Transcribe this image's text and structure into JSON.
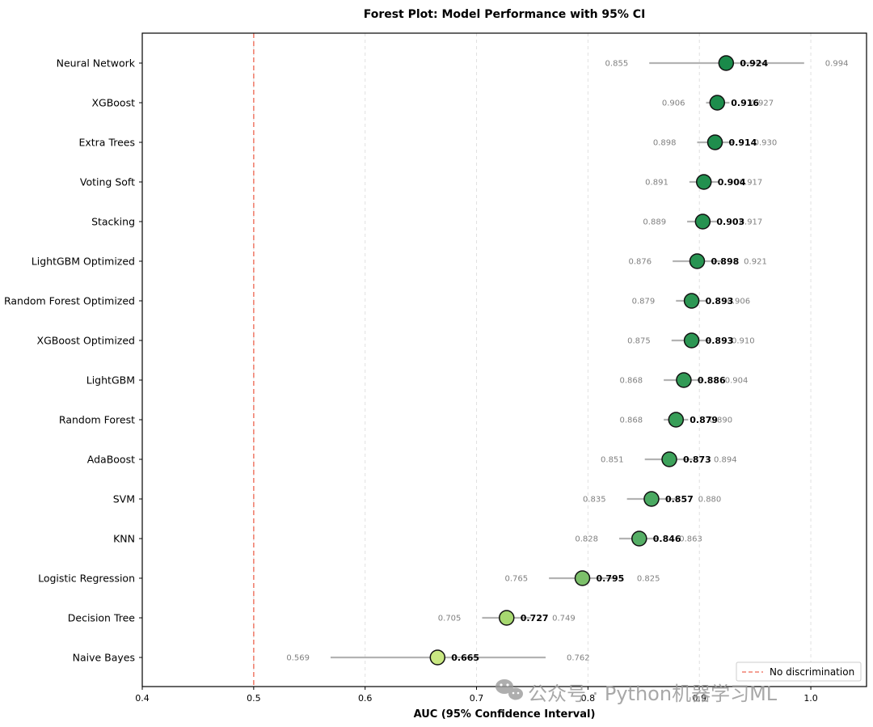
{
  "chart_data": {
    "type": "forest",
    "title": "Forest Plot: Model Performance with 95% CI",
    "xlabel": "AUC (95% Confidence Interval)",
    "ylabel": "",
    "xlim": [
      0.4,
      1.05
    ],
    "xticks": [
      "0.4",
      "0.5",
      "0.6",
      "0.7",
      "0.8",
      "0.9",
      "1.0"
    ],
    "grid": "x-dashed",
    "reference_line": {
      "x": 0.5,
      "label": "No discrimination",
      "color": "#f08070"
    },
    "legend_position": "bottom-right",
    "models": [
      {
        "name": "Neural Network",
        "auc": "0.924",
        "lo": "0.855",
        "hi": "0.994",
        "color": "#1a8a4a"
      },
      {
        "name": "XGBoost",
        "auc": "0.916",
        "lo": "0.906",
        "hi": "0.927",
        "color": "#1d8d4c"
      },
      {
        "name": "Extra Trees",
        "auc": "0.914",
        "lo": "0.898",
        "hi": "0.930",
        "color": "#1f8e4d"
      },
      {
        "name": "Voting Soft",
        "auc": "0.904",
        "lo": "0.891",
        "hi": "0.917",
        "color": "#22904f"
      },
      {
        "name": "Stacking",
        "auc": "0.903",
        "lo": "0.889",
        "hi": "0.917",
        "color": "#259250"
      },
      {
        "name": "LightGBM Optimized",
        "auc": "0.898",
        "lo": "0.876",
        "hi": "0.921",
        "color": "#289452"
      },
      {
        "name": "Random Forest Optimized",
        "auc": "0.893",
        "lo": "0.879",
        "hi": "0.906",
        "color": "#2c9653"
      },
      {
        "name": "XGBoost Optimized",
        "auc": "0.893",
        "lo": "0.875",
        "hi": "0.910",
        "color": "#2c9653"
      },
      {
        "name": "LightGBM",
        "auc": "0.886",
        "lo": "0.868",
        "hi": "0.904",
        "color": "#329a56"
      },
      {
        "name": "Random Forest",
        "auc": "0.879",
        "lo": "0.868",
        "hi": "0.890",
        "color": "#389e58"
      },
      {
        "name": "AdaBoost",
        "auc": "0.873",
        "lo": "0.851",
        "hi": "0.894",
        "color": "#3da25b"
      },
      {
        "name": "SVM",
        "auc": "0.857",
        "lo": "0.835",
        "hi": "0.880",
        "color": "#4aa961"
      },
      {
        "name": "KNN",
        "auc": "0.846",
        "lo": "0.828",
        "hi": "0.863",
        "color": "#55ae65"
      },
      {
        "name": "Logistic Regression",
        "auc": "0.795",
        "lo": "0.765",
        "hi": "0.825",
        "color": "#7cc06a"
      },
      {
        "name": "Decision Tree",
        "auc": "0.727",
        "lo": "0.705",
        "hi": "0.749",
        "color": "#a7d870"
      },
      {
        "name": "Naive Bayes",
        "auc": "0.665",
        "lo": "0.569",
        "hi": "0.762",
        "color": "#c9e882"
      }
    ]
  },
  "watermark": "公众号 · Python机器学习ML"
}
